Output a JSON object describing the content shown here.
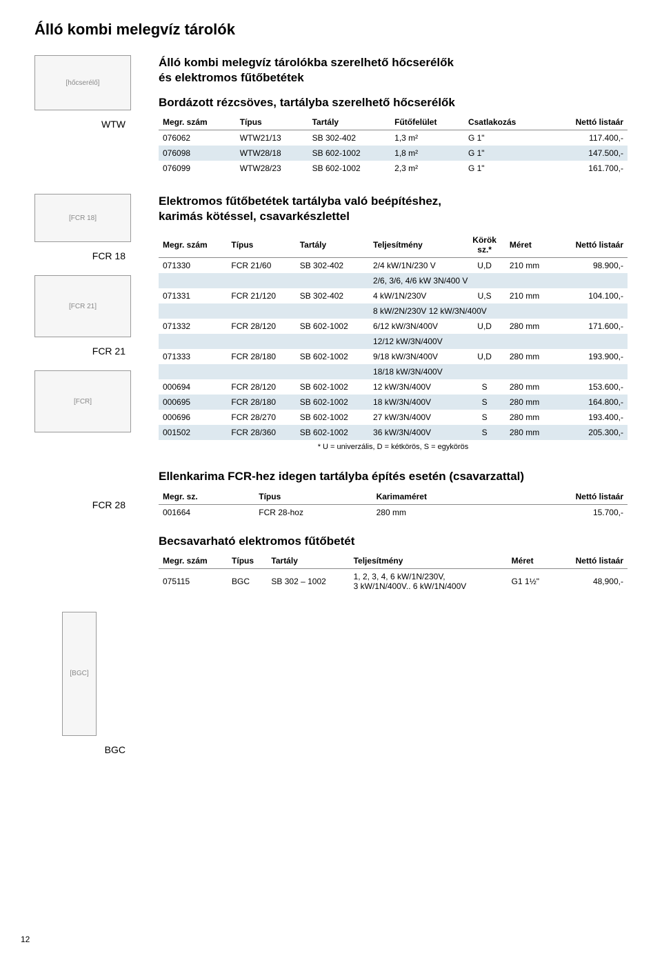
{
  "page_title": "Álló kombi melegvíz tárolók",
  "page_number": "12",
  "colors": {
    "stripe": "#dde8ef",
    "border": "#888888",
    "text": "#000000",
    "bg": "#ffffff"
  },
  "section1": {
    "heading_l1": "Álló kombi melegvíz tárolókba szerelhető hőcserélők",
    "heading_l2": "és elektromos fűtőbetétek",
    "subheading": "Bordázott rézcsöves, tartályba szerelhető hőcserélők",
    "label": "WTW",
    "columns": [
      "Megr. szám",
      "Típus",
      "Tartály",
      "Fűtőfelület",
      "Csatlakozás",
      "Nettó listaár"
    ],
    "rows": [
      [
        "076062",
        "WTW21/13",
        "SB 302-402",
        "1,3 m²",
        "G 1\"",
        "117.400,-"
      ],
      [
        "076098",
        "WTW28/18",
        "SB 602-1002",
        "1,8 m²",
        "G 1\"",
        "147.500,-"
      ],
      [
        "076099",
        "WTW28/23",
        "SB 602-1002",
        "2,3 m²",
        "G 1\"",
        "161.700,-"
      ]
    ]
  },
  "section2": {
    "heading_l1": "Elektromos fűtőbetétek tartályba való beépítéshez,",
    "heading_l2": "karimás kötéssel, csavarkészlettel",
    "labels": [
      "FCR 18",
      "FCR 21"
    ],
    "columns": [
      "Megr. szám",
      "Típus",
      "Tartály",
      "Teljesítmény",
      "Körök sz.*",
      "Méret",
      "Nettó listaár"
    ],
    "rows": [
      {
        "stripe": false,
        "cells": [
          "071330",
          "FCR 21/60",
          "SB 302-402",
          "2/4 kW/1N/230 V",
          "U,D",
          "210 mm",
          "98.900,-"
        ]
      },
      {
        "stripe": true,
        "spanCol": 3,
        "span": "2/6, 3/6, 4/6 kW 3N/400 V"
      },
      {
        "stripe": false,
        "cells": [
          "071331",
          "FCR 21/120",
          "SB 302-402",
          "4 kW/1N/230V",
          "U,S",
          "210 mm",
          "104.100,-"
        ]
      },
      {
        "stripe": true,
        "spanCol": 3,
        "span": "8 kW/2N/230V 12 kW/3N/400V"
      },
      {
        "stripe": false,
        "cells": [
          "071332",
          "FCR 28/120",
          "SB 602-1002",
          "6/12 kW/3N/400V",
          "U,D",
          "280 mm",
          "171.600,-"
        ]
      },
      {
        "stripe": true,
        "spanCol": 3,
        "span": "12/12 kW/3N/400V"
      },
      {
        "stripe": false,
        "cells": [
          "071333",
          "FCR 28/180",
          "SB 602-1002",
          "9/18 kW/3N/400V",
          "U,D",
          "280 mm",
          "193.900,-"
        ]
      },
      {
        "stripe": true,
        "spanCol": 3,
        "span": "18/18 kW/3N/400V"
      },
      {
        "stripe": false,
        "cells": [
          "000694",
          "FCR 28/120",
          "SB 602-1002",
          "12 kW/3N/400V",
          "S",
          "280 mm",
          "153.600,-"
        ]
      },
      {
        "stripe": true,
        "cells": [
          "000695",
          "FCR 28/180",
          "SB 602-1002",
          "18 kW/3N/400V",
          "S",
          "280 mm",
          "164.800,-"
        ]
      },
      {
        "stripe": false,
        "cells": [
          "000696",
          "FCR 28/270",
          "SB 602-1002",
          "27 kW/3N/400V",
          "S",
          "280 mm",
          "193.400,-"
        ]
      },
      {
        "stripe": true,
        "cells": [
          "001502",
          "FCR 28/360",
          "SB 602-1002",
          "36 kW/3N/400V",
          "S",
          "280 mm",
          "205.300,-"
        ]
      }
    ],
    "footnote": "* U = univerzális, D = kétkörös, S = egykörös"
  },
  "section3": {
    "heading": "Ellenkarima FCR-hez idegen tartályba építés esetén (csavarzattal)",
    "label": "FCR 28",
    "columns": [
      "Megr. sz.",
      "Típus",
      "Karimaméret",
      "Nettó listaár"
    ],
    "rows": [
      [
        "001664",
        "FCR 28-hoz",
        "280 mm",
        "15.700,-"
      ]
    ]
  },
  "section4": {
    "heading": "Becsavarható elektromos fűtőbetét",
    "label": "BGC",
    "columns": [
      "Megr. szám",
      "Típus",
      "Tartály",
      "Teljesítmény",
      "Méret",
      "Nettó listaár"
    ],
    "rows": [
      [
        "075115",
        "BGC",
        "SB 302 – 1002",
        "1, 2, 3, 4, 6 kW/1N/230V,\n3 kW/1N/400V.. 6 kW/1N/400V",
        "G1 1½\"",
        "48,900,-"
      ]
    ]
  }
}
